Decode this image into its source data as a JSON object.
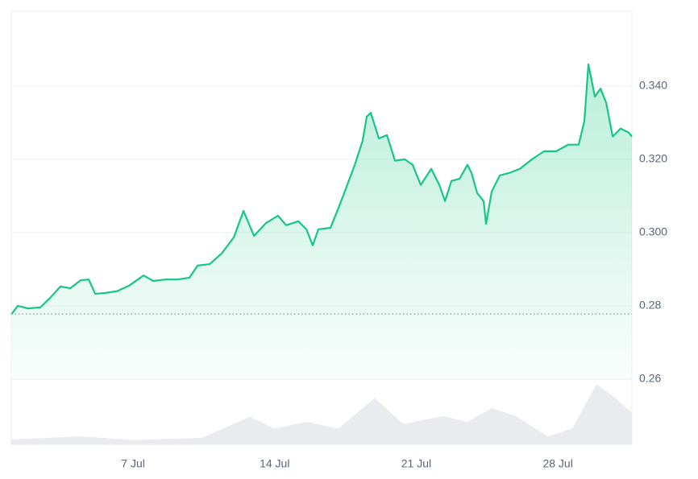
{
  "chart_data": {
    "type": "line",
    "color": "#16c784",
    "x": [
      1.0,
      1.3,
      1.82,
      2.42,
      2.9,
      3.41,
      3.89,
      4.41,
      4.81,
      5.13,
      5.61,
      6.2,
      6.8,
      7.52,
      8.0,
      8.59,
      9.19,
      9.79,
      10.19,
      10.79,
      11.38,
      11.98,
      12.46,
      12.98,
      13.57,
      14.17,
      14.57,
      15.17,
      15.57,
      15.88,
      16.16,
      16.76,
      17.16,
      17.48,
      17.96,
      18.35,
      18.55,
      18.75,
      19.15,
      19.55,
      19.95,
      20.43,
      20.82,
      21.22,
      21.74,
      22.14,
      22.42,
      22.74,
      23.14,
      23.53,
      23.73,
      24.01,
      24.33,
      24.45,
      24.73,
      25.13,
      25.61,
      26.12,
      26.72,
      27.32,
      27.92,
      28.51,
      29.03,
      29.31,
      29.51,
      29.83,
      30.11,
      30.39,
      30.71,
      31.1,
      31.5,
      31.66
    ],
    "values": [
      0.2778,
      0.28,
      0.2793,
      0.2796,
      0.2822,
      0.2853,
      0.2848,
      0.287,
      0.2872,
      0.2833,
      0.2835,
      0.284,
      0.2855,
      0.2883,
      0.2868,
      0.2872,
      0.2872,
      0.2877,
      0.291,
      0.2914,
      0.2943,
      0.2987,
      0.3059,
      0.2991,
      0.3026,
      0.3046,
      0.302,
      0.3031,
      0.3009,
      0.2965,
      0.3009,
      0.3013,
      0.3068,
      0.3114,
      0.3185,
      0.3251,
      0.3316,
      0.3327,
      0.3257,
      0.3266,
      0.3196,
      0.32,
      0.3185,
      0.313,
      0.3174,
      0.313,
      0.3086,
      0.3141,
      0.3147,
      0.3185,
      0.3163,
      0.3108,
      0.3086,
      0.3024,
      0.3112,
      0.3156,
      0.3163,
      0.3174,
      0.32,
      0.3222,
      0.3222,
      0.324,
      0.324,
      0.3305,
      0.3459,
      0.3371,
      0.3393,
      0.3354,
      0.3262,
      0.3284,
      0.3273,
      0.3262
    ],
    "volume": {
      "color": "#e9ebef",
      "vlim": [
        0,
        100
      ],
      "x": [
        1.0,
        4.41,
        7.0,
        10.39,
        12.78,
        13.97,
        15.57,
        17.16,
        18.95,
        20.35,
        22.34,
        23.53,
        24.73,
        25.92,
        27.52,
        28.71,
        29.91,
        30.71,
        31.66
      ],
      "values": [
        7,
        11,
        6,
        9,
        38,
        22,
        31,
        22,
        64,
        28,
        39,
        31,
        50,
        39,
        11,
        22,
        83,
        67,
        44
      ]
    },
    "xlim": [
      0.98,
      31.66
    ],
    "ylim": [
      0.2422,
      0.3604
    ],
    "xticks": [
      {
        "value": 7,
        "label": "7 Jul"
      },
      {
        "value": 14,
        "label": "14 Jul"
      },
      {
        "value": 21,
        "label": "21 Jul"
      },
      {
        "value": 28,
        "label": "28 Jul"
      }
    ],
    "yticks": [
      {
        "value": 0.34,
        "label": "0.340"
      },
      {
        "value": 0.32,
        "label": "0.320"
      },
      {
        "value": 0.3,
        "label": "0.300"
      },
      0.28,
      0.26
    ],
    "grid": true
  }
}
